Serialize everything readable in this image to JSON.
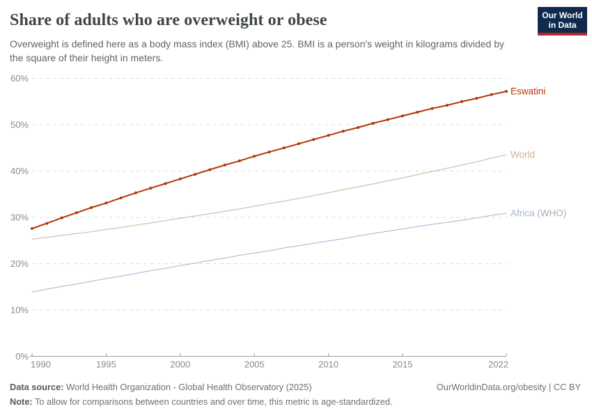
{
  "header": {
    "title": "Share of adults who are overweight or obese",
    "logo_line1": "Our World",
    "logo_line2": "in Data",
    "logo_bg": "#102a4e",
    "logo_stripe": "#b5292d"
  },
  "subtitle": "Overweight is defined here as a body mass index (BMI) above 25. BMI is a person's weight in kilograms divided by the square of their height in meters.",
  "chart_data": {
    "type": "line",
    "title": "Share of adults who are overweight or obese",
    "xlabel": "",
    "ylabel": "",
    "ylim": [
      0,
      60
    ],
    "yticks": [
      0,
      10,
      20,
      30,
      40,
      50,
      60
    ],
    "ytick_suffix": "%",
    "xticks": [
      1990,
      1995,
      2000,
      2005,
      2010,
      2015,
      2022
    ],
    "grid": "dashed-horizontal",
    "legend_position": "right-end-labels",
    "x": [
      1990,
      1991,
      1992,
      1993,
      1994,
      1995,
      1996,
      1997,
      1998,
      1999,
      2000,
      2001,
      2002,
      2003,
      2004,
      2005,
      2006,
      2007,
      2008,
      2009,
      2010,
      2011,
      2012,
      2013,
      2014,
      2015,
      2016,
      2017,
      2018,
      2019,
      2020,
      2021,
      2022
    ],
    "series": [
      {
        "name": "Africa (WHO)",
        "label_main": "Africa",
        "label_suffix": " (WHO)",
        "color": "#a0b3d3",
        "suffix_color": "#a8aeb6",
        "line_width": 1,
        "markers": false,
        "values": [
          13.9,
          14.5,
          15.1,
          15.6,
          16.2,
          16.8,
          17.3,
          17.9,
          18.5,
          19.0,
          19.6,
          20.1,
          20.7,
          21.2,
          21.8,
          22.3,
          22.8,
          23.4,
          23.9,
          24.4,
          24.9,
          25.4,
          26.0,
          26.5,
          27.0,
          27.5,
          28.0,
          28.5,
          28.9,
          29.4,
          29.9,
          30.4,
          30.9
        ]
      },
      {
        "name": "World",
        "label_main": "World",
        "label_suffix": "",
        "color": "#d0b294",
        "suffix_color": "#d0b294",
        "line_width": 1,
        "markers": false,
        "values": [
          25.3,
          25.7,
          26.1,
          26.5,
          26.9,
          27.4,
          27.8,
          28.3,
          28.8,
          29.3,
          29.8,
          30.3,
          30.8,
          31.3,
          31.8,
          32.4,
          33.0,
          33.5,
          34.1,
          34.7,
          35.3,
          36.0,
          36.6,
          37.2,
          37.9,
          38.5,
          39.2,
          39.9,
          40.6,
          41.3,
          42.0,
          42.8,
          43.5
        ]
      },
      {
        "name": "Eswatini",
        "label_main": "Eswatini",
        "label_suffix": "",
        "color": "#b13507",
        "suffix_color": "#b13507",
        "line_width": 2,
        "markers": true,
        "values": [
          27.6,
          28.7,
          29.9,
          31.0,
          32.1,
          33.1,
          34.2,
          35.3,
          36.3,
          37.3,
          38.3,
          39.3,
          40.3,
          41.3,
          42.2,
          43.2,
          44.1,
          45.0,
          45.9,
          46.8,
          47.7,
          48.6,
          49.4,
          50.3,
          51.1,
          51.9,
          52.7,
          53.5,
          54.2,
          55.0,
          55.7,
          56.5,
          57.2
        ]
      }
    ],
    "style": {
      "grid_color": "#dcdcdc",
      "axis_color": "#9c9c9c",
      "tick_label_color": "#8a8a8a"
    }
  },
  "footer": {
    "source_label": "Data source:",
    "source_text": " World Health Organization - Global Health Observatory (2025)",
    "rights": "OurWorldinData.org/obesity | CC BY",
    "note_label": "Note:",
    "note_text": " To allow for comparisons between countries and over time, this metric is age-standardized."
  }
}
